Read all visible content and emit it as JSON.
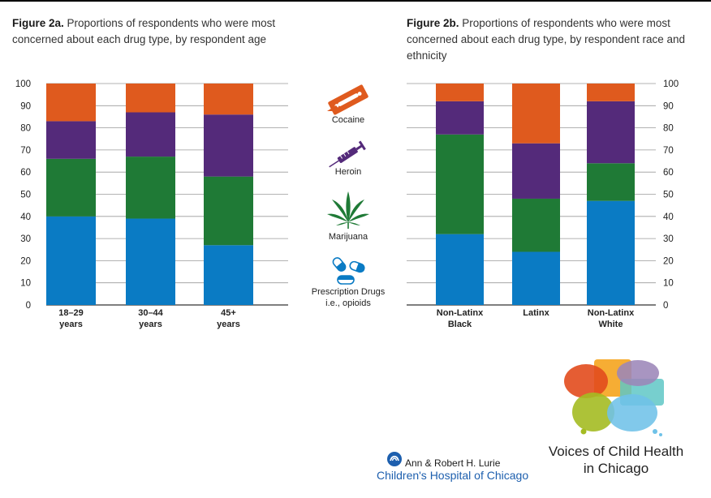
{
  "fig_a": {
    "title_bold": "Figure 2a.",
    "title_rest": " Proportions of respondents who were most concerned about each drug type, by respondent age"
  },
  "fig_b": {
    "title_bold": "Figure 2b.",
    "title_rest": " Proportions of respondents who were most concerned about each drug type, by respondent race and ethnicity"
  },
  "legend": {
    "cocaine": "Cocaine",
    "heroin": "Heroin",
    "marijuana": "Marijuana",
    "prescription_1": "Prescription Drugs",
    "prescription_2": "i.e., opioids",
    "icons": [
      "razor-blade-icon",
      "syringe-icon",
      "cannabis-leaf-icon",
      "pills-icon"
    ]
  },
  "colors": {
    "prescription": "#0a7bc4",
    "marijuana": "#1f7a36",
    "heroin": "#542a7a",
    "cocaine": "#df5a1e"
  },
  "chart_data": [
    {
      "type": "bar",
      "stacked": true,
      "title": "Figure 2a. Proportions of respondents who were most concerned about each drug type, by respondent age",
      "categories": [
        [
          "18–29",
          "years"
        ],
        [
          "30–44",
          "years"
        ],
        [
          "45+",
          "years"
        ]
      ],
      "ylim": [
        0,
        100
      ],
      "yticks": [
        0,
        10,
        20,
        30,
        40,
        50,
        60,
        70,
        80,
        90,
        100
      ],
      "axis_side": "left",
      "series": [
        {
          "name": "Prescription Drugs i.e., opioids",
          "key": "prescription",
          "values": [
            40,
            39,
            27
          ]
        },
        {
          "name": "Marijuana",
          "key": "marijuana",
          "values": [
            26,
            28,
            31
          ]
        },
        {
          "name": "Heroin",
          "key": "heroin",
          "values": [
            17,
            20,
            28
          ]
        },
        {
          "name": "Cocaine",
          "key": "cocaine",
          "values": [
            17,
            13,
            14
          ]
        }
      ]
    },
    {
      "type": "bar",
      "stacked": true,
      "title": "Figure 2b. Proportions of respondents who were most concerned about each drug type, by respondent race and ethnicity",
      "categories": [
        [
          "Non-Latinx",
          "Black"
        ],
        [
          "Latinx",
          ""
        ],
        [
          "Non-Latinx",
          "White"
        ]
      ],
      "ylim": [
        0,
        100
      ],
      "yticks": [
        0,
        10,
        20,
        30,
        40,
        50,
        60,
        70,
        80,
        90,
        100
      ],
      "axis_side": "right",
      "series": [
        {
          "name": "Prescription Drugs i.e., opioids",
          "key": "prescription",
          "values": [
            32,
            24,
            47
          ]
        },
        {
          "name": "Marijuana",
          "key": "marijuana",
          "values": [
            45,
            24,
            17
          ]
        },
        {
          "name": "Heroin",
          "key": "heroin",
          "values": [
            15,
            25,
            28
          ]
        },
        {
          "name": "Cocaine",
          "key": "cocaine",
          "values": [
            8,
            27,
            8
          ]
        }
      ]
    }
  ],
  "footer": {
    "hospital_line1": "Ann & Robert H. Lurie",
    "hospital_line2": "Children's Hospital of Chicago",
    "voices_line1": "Voices of Child Health",
    "voices_line2": "in Chicago"
  }
}
